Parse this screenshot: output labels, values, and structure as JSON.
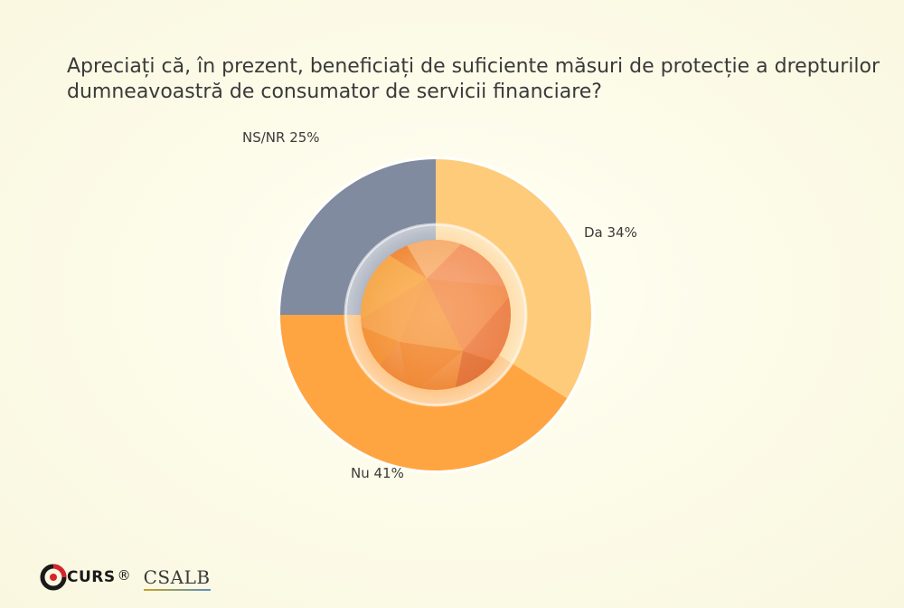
{
  "title": "Apreciați că, în prezent, beneficiați de suficiente măsuri de protecție a drepturilor dumneavoastră de consumator de servicii financiare?",
  "chart_data": {
    "type": "pie",
    "title": "Apreciați că, în prezent, beneficiați de suficiente măsuri de protecție a drepturilor dumneavoastră de consumator de servicii financiare?",
    "categories": [
      "Da",
      "Nu",
      "NS/NR"
    ],
    "values": [
      34,
      41,
      25
    ],
    "labels": [
      "Da 34%",
      "Nu 41%",
      "NS/NR 25%"
    ],
    "colors": [
      "#fecb7a",
      "#fea542",
      "#808b9f"
    ],
    "unit": "%"
  },
  "logos": {
    "curs": "CURS",
    "curs_reg": "®",
    "csalb": "CSALB"
  }
}
